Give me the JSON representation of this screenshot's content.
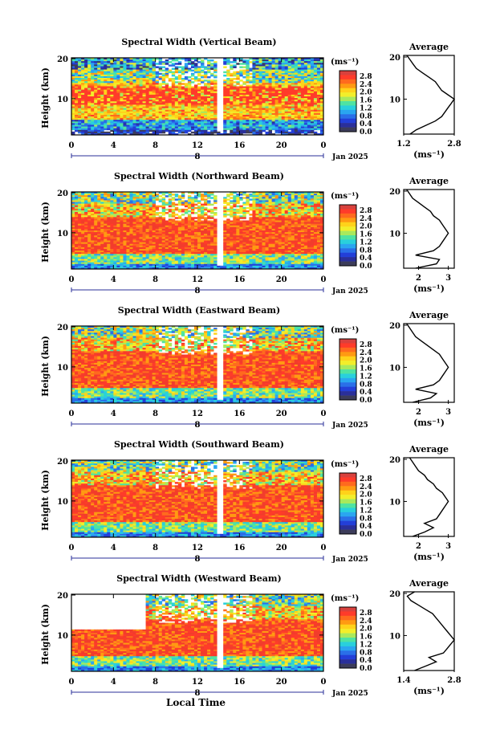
{
  "colorbar": {
    "unit": "(ms⁻¹)",
    "tick_labels": [
      "2.8",
      "2.4",
      "2.0",
      "1.6",
      "1.2",
      "0.8",
      "0.4",
      "0.0"
    ],
    "colors": [
      "#d8413d",
      "#ff3b2a",
      "#ff6a1e",
      "#ff9a12",
      "#ffd21a",
      "#f2ee2a",
      "#a9e95c",
      "#4fe3a2",
      "#29d0dc",
      "#2aa6f0",
      "#2a6fe8",
      "#233fd8",
      "#2a2f9a",
      "#3c3c5a"
    ]
  },
  "common": {
    "x_tick_labels": [
      "0",
      "4",
      "8",
      "12",
      "16",
      "20",
      "0"
    ],
    "y_tick_labels": [
      "20",
      "10"
    ],
    "date_label": "Jan 2025",
    "day_label": "8",
    "ylabel": "Height (km)",
    "xlabel": "Local Time",
    "profile_title": "Average",
    "profile_unit": "(ms⁻¹)"
  },
  "chart_data": [
    {
      "type": "heatmap",
      "title": "Spectral Width (Vertical Beam)",
      "x_range_hours": [
        0,
        24
      ],
      "y_range_km": [
        2,
        20
      ],
      "average_profile": {
        "xlabels": [
          "1.2",
          "2.8"
        ],
        "xlim": [
          1.2,
          2.8
        ],
        "height_km": [
          2,
          3,
          4,
          5,
          6,
          7,
          8,
          9,
          10,
          11,
          12,
          13,
          14,
          15,
          16,
          17,
          18,
          19,
          20
        ],
        "values": [
          1.4,
          1.6,
          1.9,
          2.2,
          2.4,
          2.5,
          2.6,
          2.7,
          2.8,
          2.6,
          2.4,
          2.3,
          2.2,
          2.0,
          1.8,
          1.6,
          1.5,
          1.4,
          1.3
        ]
      }
    },
    {
      "type": "heatmap",
      "title": "Spectral Width (Northward Beam)",
      "x_range_hours": [
        0,
        24
      ],
      "y_range_km": [
        2,
        20
      ],
      "average_profile": {
        "xlabels": [
          "2",
          "3"
        ],
        "xlim": [
          1.5,
          3.2
        ],
        "height_km": [
          2,
          3,
          4,
          5,
          6,
          7,
          8,
          9,
          10,
          11,
          12,
          13,
          14,
          15,
          16,
          17,
          18,
          19,
          20
        ],
        "values": [
          1.9,
          2.6,
          2.7,
          1.9,
          2.5,
          2.7,
          2.8,
          2.9,
          3.0,
          2.9,
          2.8,
          2.7,
          2.5,
          2.4,
          2.2,
          2.0,
          1.8,
          1.7,
          1.6
        ]
      }
    },
    {
      "type": "heatmap",
      "title": "Spectral Width (Eastward Beam)",
      "x_range_hours": [
        0,
        24
      ],
      "y_range_km": [
        2,
        20
      ],
      "average_profile": {
        "xlabels": [
          "2",
          "3"
        ],
        "xlim": [
          1.5,
          3.2
        ],
        "height_km": [
          2,
          3,
          4,
          5,
          6,
          7,
          8,
          9,
          10,
          11,
          12,
          13,
          14,
          15,
          16,
          17,
          18,
          19,
          20
        ],
        "values": [
          1.8,
          2.4,
          2.6,
          1.9,
          2.5,
          2.7,
          2.8,
          2.9,
          3.0,
          2.9,
          2.8,
          2.7,
          2.5,
          2.3,
          2.1,
          1.9,
          1.8,
          1.7,
          1.6
        ]
      }
    },
    {
      "type": "heatmap",
      "title": "Spectral Width (Southward Beam)",
      "x_range_hours": [
        0,
        24
      ],
      "y_range_km": [
        2,
        20
      ],
      "average_profile": {
        "xlabels": [
          "2",
          "3"
        ],
        "xlim": [
          1.5,
          3.2
        ],
        "height_km": [
          2,
          3,
          4,
          5,
          6,
          7,
          8,
          9,
          10,
          11,
          12,
          13,
          14,
          15,
          16,
          17,
          18,
          19,
          20
        ],
        "values": [
          1.8,
          2.2,
          2.5,
          2.2,
          2.6,
          2.7,
          2.8,
          2.9,
          3.0,
          2.9,
          2.8,
          2.6,
          2.5,
          2.3,
          2.2,
          2.0,
          1.9,
          1.8,
          1.7
        ]
      }
    },
    {
      "type": "heatmap",
      "title": "Spectral Width (Westward Beam)",
      "x_range_hours": [
        0,
        24
      ],
      "y_range_km": [
        2,
        20
      ],
      "average_profile": {
        "xlabels": [
          "1.4",
          "2.8"
        ],
        "xlim": [
          1.4,
          2.8
        ],
        "height_km": [
          2,
          3,
          4,
          5,
          6,
          7,
          8,
          9,
          10,
          11,
          12,
          13,
          14,
          15,
          16,
          17,
          18,
          19,
          20
        ],
        "values": [
          1.7,
          2.0,
          2.3,
          2.1,
          2.5,
          2.6,
          2.7,
          2.8,
          2.7,
          2.6,
          2.5,
          2.4,
          2.3,
          2.2,
          2.0,
          1.8,
          1.6,
          1.5,
          1.7
        ]
      }
    }
  ]
}
